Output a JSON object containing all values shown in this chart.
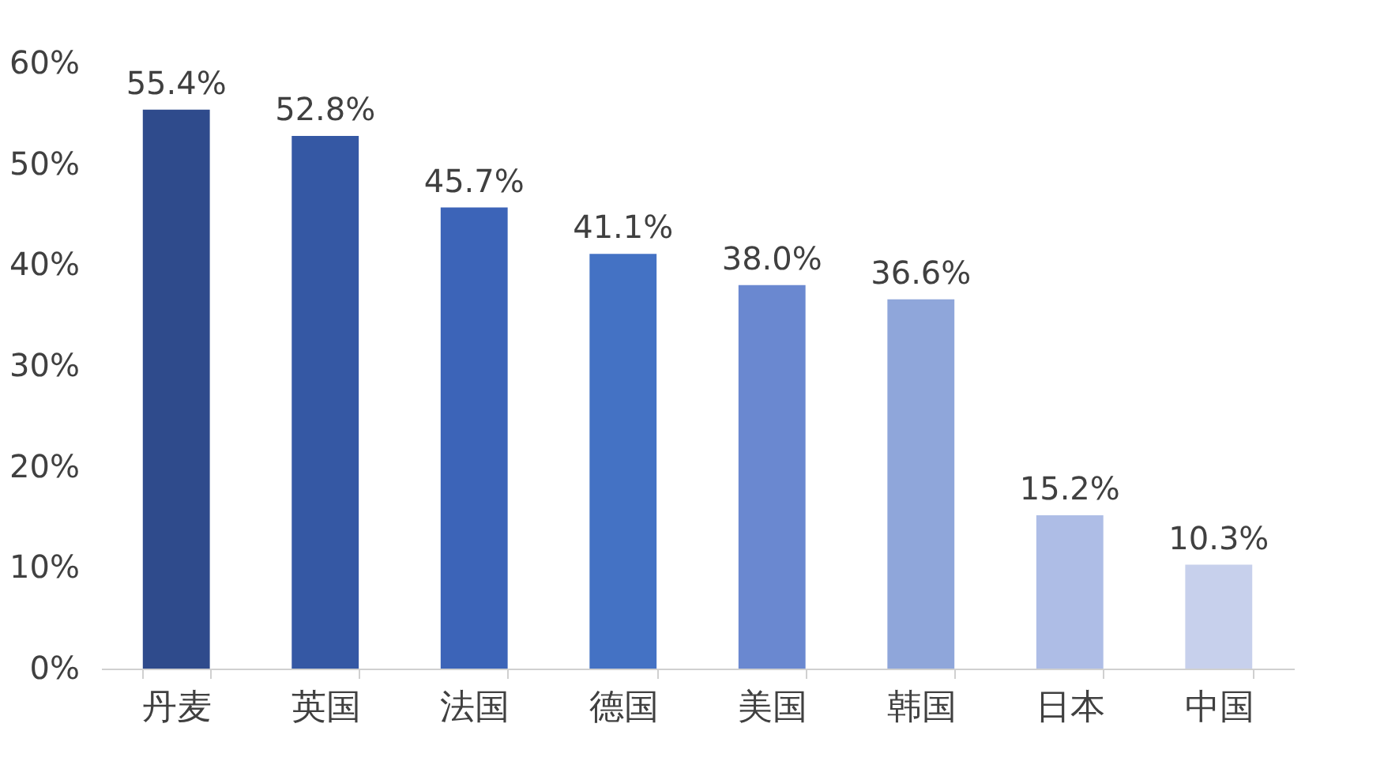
{
  "chart_data": {
    "type": "bar",
    "categories": [
      "丹麦",
      "英国",
      "法国",
      "德国",
      "美国",
      "韩国",
      "日本",
      "中国"
    ],
    "values": [
      55.4,
      52.8,
      45.7,
      41.1,
      38.0,
      36.6,
      15.2,
      10.3
    ],
    "value_labels": [
      "55.4%",
      "52.8%",
      "45.7%",
      "41.1%",
      "38.0%",
      "36.6%",
      "15.2%",
      "10.3%"
    ],
    "colors": [
      "#2f4b8c",
      "#3558a4",
      "#3c64b8",
      "#4472c4",
      "#6a88d0",
      "#8fa6da",
      "#aebde6",
      "#c7d0ec"
    ],
    "ylim": [
      0,
      60
    ],
    "yticks": [
      {
        "value": 0,
        "label": "0%"
      },
      {
        "value": 10,
        "label": "10%"
      },
      {
        "value": 20,
        "label": "20%"
      },
      {
        "value": 30,
        "label": "30%"
      },
      {
        "value": 40,
        "label": "40%"
      },
      {
        "value": 50,
        "label": "50%"
      },
      {
        "value": 60,
        "label": "60%"
      }
    ],
    "grid": false
  }
}
